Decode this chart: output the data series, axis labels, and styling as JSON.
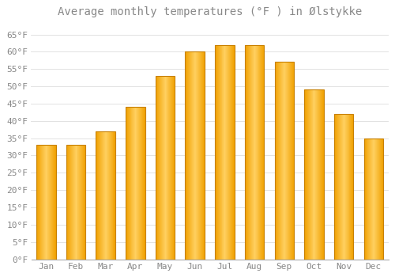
{
  "title": "Average monthly temperatures (°F ) in Ølstykke",
  "months": [
    "Jan",
    "Feb",
    "Mar",
    "Apr",
    "May",
    "Jun",
    "Jul",
    "Aug",
    "Sep",
    "Oct",
    "Nov",
    "Dec"
  ],
  "values": [
    33,
    33,
    37,
    44,
    53,
    60,
    62,
    62,
    57,
    49,
    42,
    35
  ],
  "bar_color_center": "#FFD050",
  "bar_color_edge": "#F0A000",
  "bar_edge_color": "#C88000",
  "background_color": "#FFFFFF",
  "grid_color": "#DDDDDD",
  "text_color": "#888888",
  "ylim": [
    0,
    68
  ],
  "yticks": [
    0,
    5,
    10,
    15,
    20,
    25,
    30,
    35,
    40,
    45,
    50,
    55,
    60,
    65
  ],
  "ytick_labels": [
    "0°F",
    "5°F",
    "10°F",
    "15°F",
    "20°F",
    "25°F",
    "30°F",
    "35°F",
    "40°F",
    "45°F",
    "50°F",
    "55°F",
    "60°F",
    "65°F"
  ],
  "title_fontsize": 10,
  "tick_fontsize": 8
}
